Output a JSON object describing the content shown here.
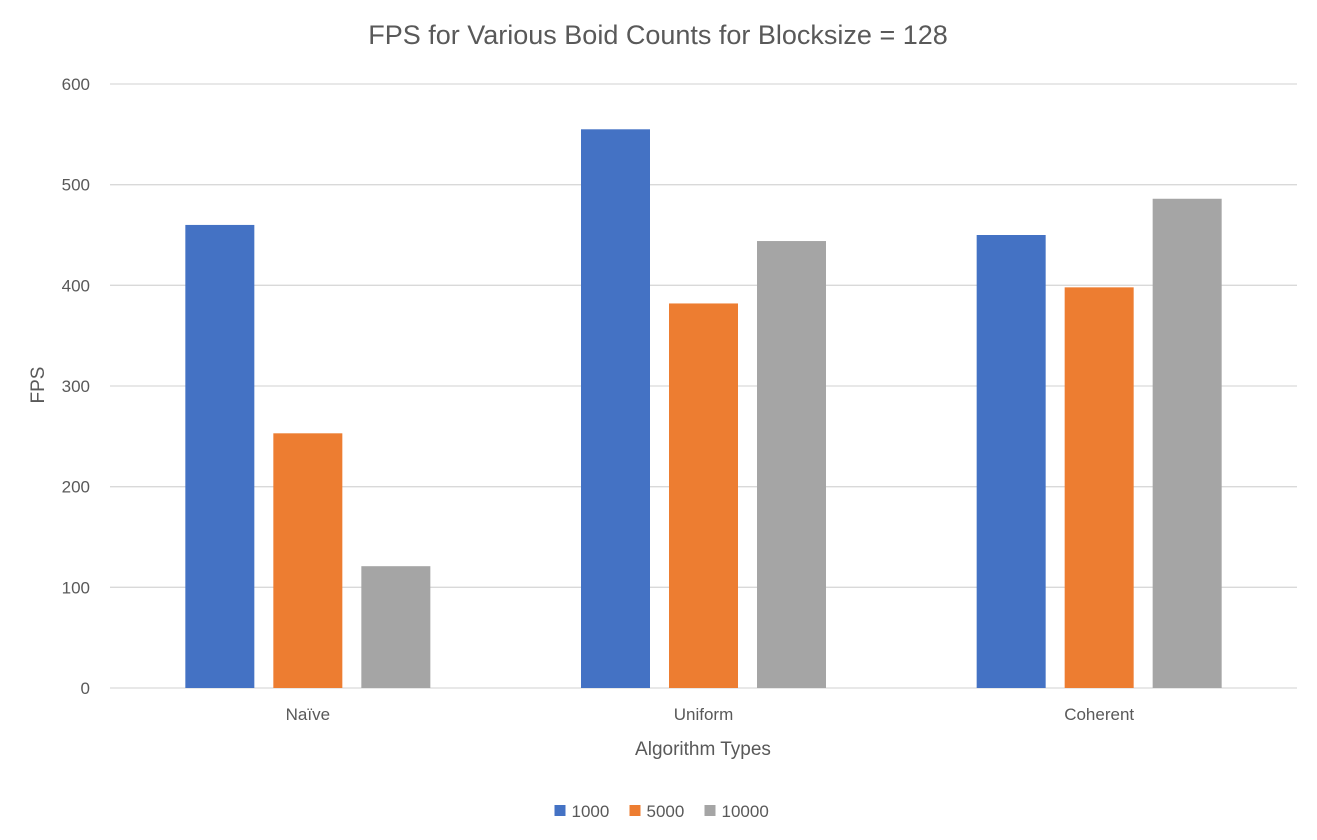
{
  "chart_data": {
    "type": "bar",
    "title": "FPS for Various Boid Counts for Blocksize = 128",
    "xlabel": "Algorithm Types",
    "ylabel": "FPS",
    "categories": [
      "Naïve",
      "Uniform",
      "Coherent"
    ],
    "series": [
      {
        "name": "1000",
        "color": "#4472c4",
        "values": [
          460,
          555,
          450
        ]
      },
      {
        "name": "5000",
        "color": "#ed7d31",
        "values": [
          253,
          382,
          398
        ]
      },
      {
        "name": "10000",
        "color": "#a5a5a5",
        "values": [
          121,
          444,
          486
        ]
      }
    ],
    "ylim": [
      0,
      600
    ],
    "yticks": [
      "0",
      "100",
      "200",
      "300",
      "400",
      "500",
      "600"
    ],
    "grid": true,
    "legend_position": "bottom"
  }
}
